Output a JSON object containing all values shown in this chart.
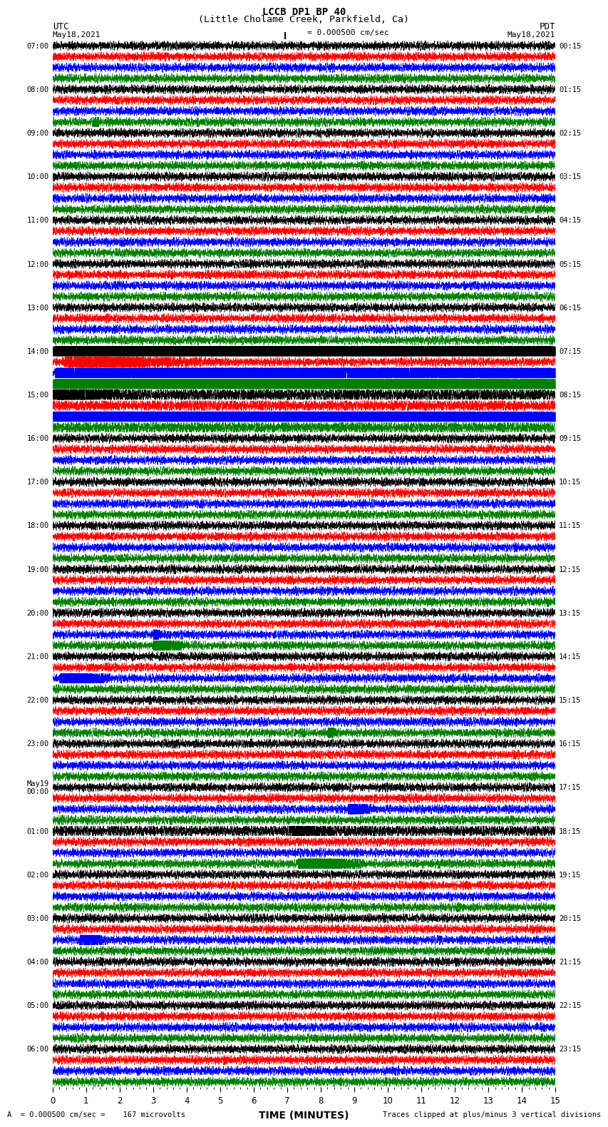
{
  "title_line1": "LCCB DP1 BP 40",
  "title_line2": "(Little Cholame Creek, Parkfield, Ca)",
  "utc_label": "UTC",
  "pdt_label": "PDT",
  "date_left": "May18,2021",
  "date_right": "May18,2021",
  "scale_text": "I = 0.000500 cm/sec",
  "xlabel": "TIME (MINUTES)",
  "bottom_left": "A  = 0.000500 cm/sec =    167 microvolts",
  "bottom_right": "Traces clipped at plus/minus 3 vertical divisions",
  "colors": [
    "black",
    "red",
    "blue",
    "green"
  ],
  "background_color": "#ffffff",
  "n_rows": 24,
  "n_traces_per_row": 4,
  "x_min": 0,
  "x_max": 15,
  "utc_times": [
    "07:00",
    "08:00",
    "09:00",
    "10:00",
    "11:00",
    "12:00",
    "13:00",
    "14:00",
    "15:00",
    "16:00",
    "17:00",
    "18:00",
    "19:00",
    "20:00",
    "21:00",
    "22:00",
    "23:00",
    "May19\n00:00",
    "01:00",
    "02:00",
    "03:00",
    "04:00",
    "05:00",
    "06:00"
  ],
  "pdt_times": [
    "00:15",
    "01:15",
    "02:15",
    "03:15",
    "04:15",
    "05:15",
    "06:15",
    "07:15",
    "08:15",
    "09:15",
    "10:15",
    "11:15",
    "12:15",
    "13:15",
    "14:15",
    "15:15",
    "16:15",
    "17:15",
    "18:15",
    "19:15",
    "20:15",
    "21:15",
    "22:15",
    "23:15"
  ]
}
